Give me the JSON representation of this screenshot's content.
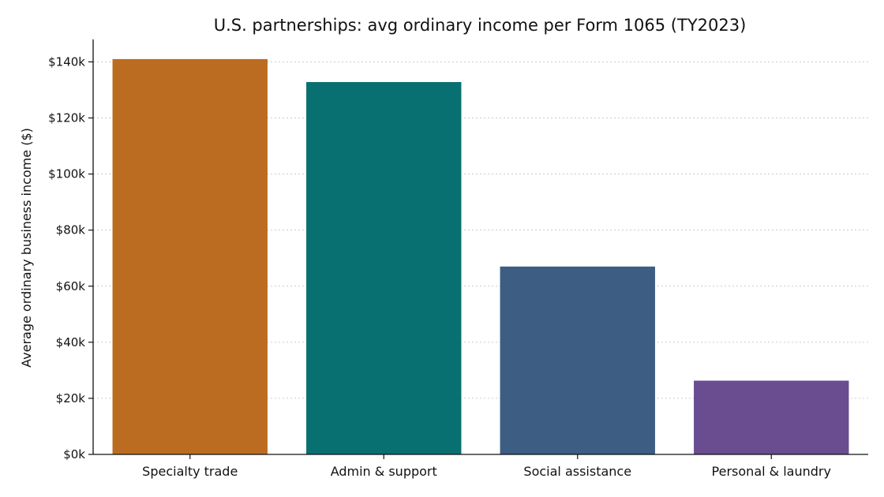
{
  "chart_data": {
    "type": "bar",
    "title": "U.S. partnerships: avg ordinary income per Form 1065 (TY2023)",
    "xlabel": "",
    "ylabel": "Average ordinary business income ($)",
    "categories": [
      "Specialty trade",
      "Admin & support",
      "Social assistance",
      "Personal & laundry"
    ],
    "values": [
      141000,
      132800,
      67000,
      26300
    ],
    "colors": [
      "#bc6c21",
      "#097072",
      "#3d5d82",
      "#6a4d91"
    ],
    "ylim": [
      0,
      148000
    ],
    "yticks": [
      0,
      20000,
      40000,
      60000,
      80000,
      100000,
      120000,
      140000
    ],
    "ytick_labels": [
      "$0k",
      "$20k",
      "$40k",
      "$60k",
      "$80k",
      "$100k",
      "$120k",
      "$140k"
    ],
    "grid": "horizontal-dotted",
    "legend": "none"
  }
}
